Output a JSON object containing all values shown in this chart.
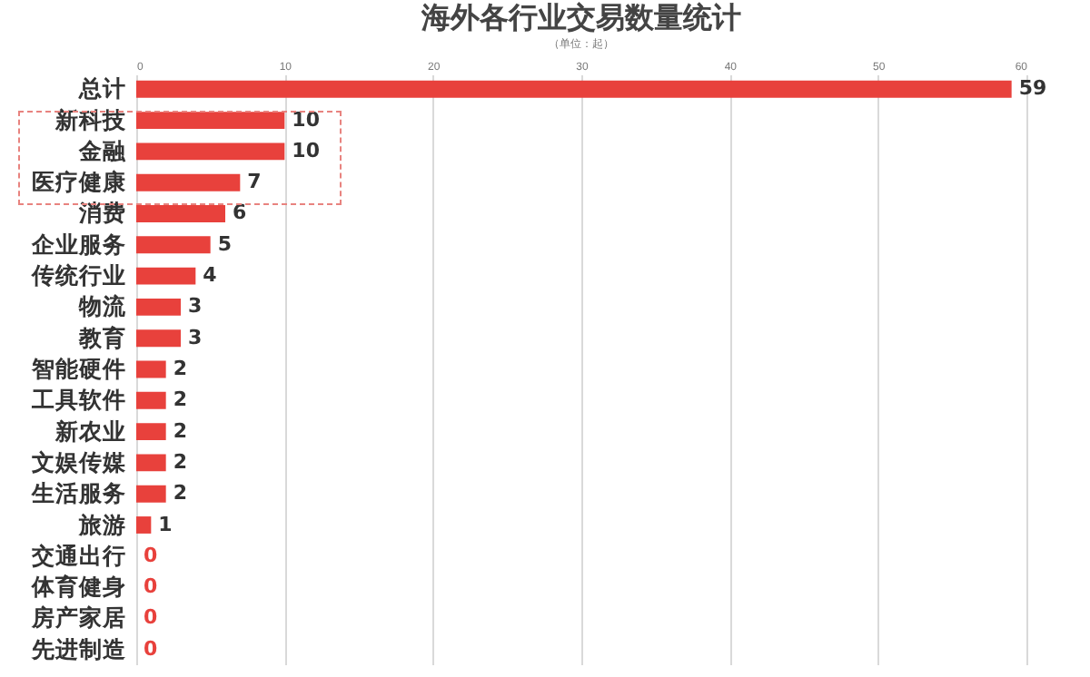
{
  "chart_data": {
    "type": "bar",
    "orientation": "horizontal",
    "title": "海外各行业交易数量统计",
    "subtitle": "（单位：起）",
    "categories": [
      "总计",
      "新科技",
      "金融",
      "医疗健康",
      "消费",
      "企业服务",
      "传统行业",
      "物流",
      "教育",
      "智能硬件",
      "工具软件",
      "新农业",
      "文娱传媒",
      "生活服务",
      "旅游",
      "交通出行",
      "体育健身",
      "房产家居",
      "先进制造"
    ],
    "values": [
      59,
      10,
      10,
      7,
      6,
      5,
      4,
      3,
      3,
      2,
      2,
      2,
      2,
      2,
      1,
      0,
      0,
      0,
      0
    ],
    "color": "#e8413c",
    "xlim": [
      0,
      60
    ],
    "xticks": [
      0,
      10,
      20,
      30,
      40,
      50,
      60
    ],
    "grid": "x",
    "data_labels": true
  }
}
